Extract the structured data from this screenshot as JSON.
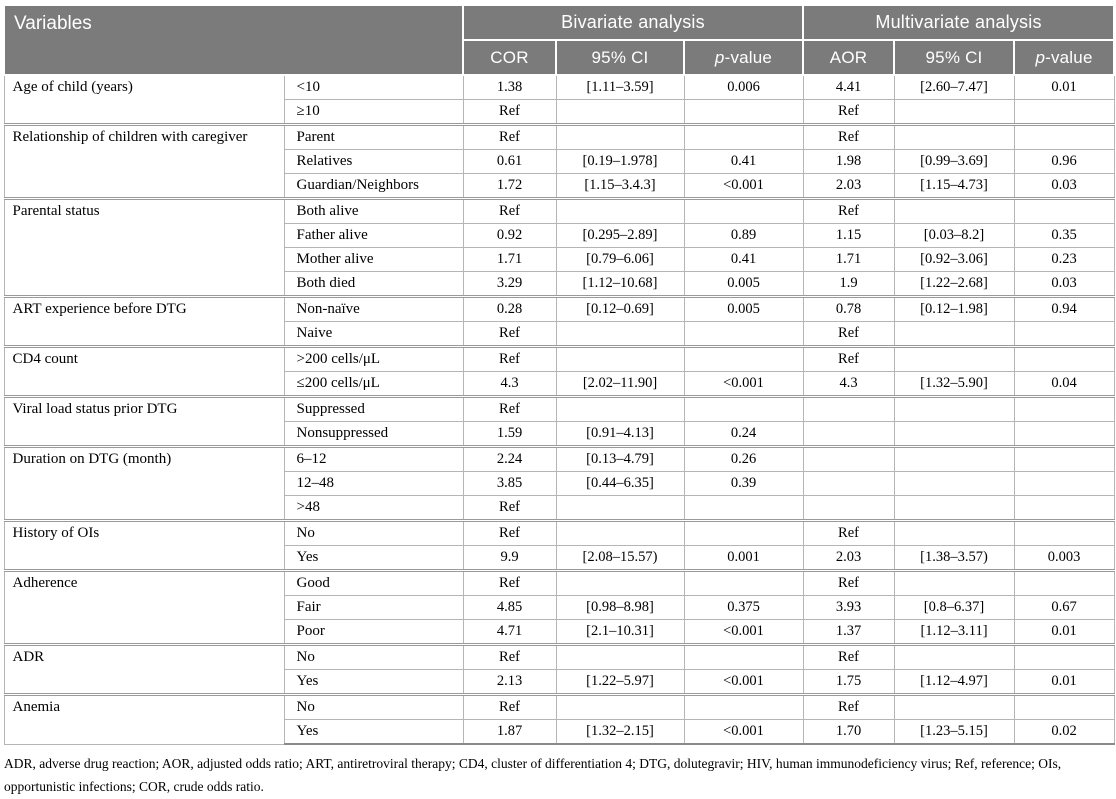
{
  "table": {
    "header": {
      "variables": "Variables",
      "bivariate": "Bivariate analysis",
      "multivariate": "Multivariate analysis",
      "sub_columns": [
        "COR",
        "95% CI",
        "p-value",
        "AOR",
        "95% CI",
        "p-value"
      ]
    },
    "groups": [
      {
        "variable": "Age of child (years)",
        "rows": [
          {
            "category": "<10",
            "cells": [
              "1.38",
              "[1.11–3.59]",
              "0.006",
              "4.41",
              "[2.60–7.47]",
              "0.01"
            ]
          },
          {
            "category": "≥10",
            "cells": [
              "Ref",
              "",
              "",
              "Ref",
              "",
              ""
            ]
          }
        ]
      },
      {
        "variable": "Relationship of children with caregiver",
        "rows": [
          {
            "category": "Parent",
            "cells": [
              "Ref",
              "",
              "",
              "Ref",
              "",
              ""
            ]
          },
          {
            "category": "Relatives",
            "cells": [
              "0.61",
              "[0.19–1.978]",
              "0.41",
              "1.98",
              "[0.99–3.69]",
              "0.96"
            ]
          },
          {
            "category": "Guardian/Neighbors",
            "cells": [
              "1.72",
              "[1.15–3.4.3]",
              "<0.001",
              "2.03",
              "[1.15–4.73]",
              "0.03"
            ]
          }
        ]
      },
      {
        "variable": "Parental status",
        "rows": [
          {
            "category": "Both alive",
            "cells": [
              "Ref",
              "",
              "",
              "Ref",
              "",
              ""
            ]
          },
          {
            "category": "Father alive",
            "cells": [
              "0.92",
              "[0.295–2.89]",
              "0.89",
              "1.15",
              "[0.03–8.2]",
              "0.35"
            ]
          },
          {
            "category": "Mother alive",
            "cells": [
              "1.71",
              "[0.79–6.06]",
              "0.41",
              "1.71",
              "[0.92–3.06]",
              "0.23"
            ]
          },
          {
            "category": "Both died",
            "cells": [
              "3.29",
              "[1.12–10.68]",
              "0.005",
              "1.9",
              "[1.22–2.68]",
              "0.03"
            ]
          }
        ]
      },
      {
        "variable": "ART experience before DTG",
        "rows": [
          {
            "category": "Non-naïve",
            "cells": [
              "0.28",
              "[0.12–0.69]",
              "0.005",
              "0.78",
              "[0.12–1.98]",
              "0.94"
            ]
          },
          {
            "category": "Naive",
            "cells": [
              "Ref",
              "",
              "",
              "Ref",
              "",
              ""
            ]
          }
        ]
      },
      {
        "variable": "CD4 count",
        "rows": [
          {
            "category": ">200 cells/μL",
            "cells": [
              "Ref",
              "",
              "",
              "Ref",
              "",
              ""
            ]
          },
          {
            "category": "≤200 cells/μL",
            "cells": [
              "4.3",
              "[2.02–11.90]",
              "<0.001",
              "4.3",
              "[1.32–5.90]",
              "0.04"
            ]
          }
        ]
      },
      {
        "variable": "Viral load status prior DTG",
        "rows": [
          {
            "category": "Suppressed",
            "cells": [
              "Ref",
              "",
              "",
              "",
              "",
              ""
            ]
          },
          {
            "category": "Nonsuppressed",
            "cells": [
              "1.59",
              "[0.91–4.13]",
              "0.24",
              "",
              "",
              ""
            ]
          }
        ]
      },
      {
        "variable": "Duration on DTG (month)",
        "rows": [
          {
            "category": "6–12",
            "cells": [
              "2.24",
              "[0.13–4.79]",
              "0.26",
              "",
              "",
              ""
            ]
          },
          {
            "category": "12–48",
            "cells": [
              "3.85",
              "[0.44–6.35]",
              "0.39",
              "",
              "",
              ""
            ]
          },
          {
            "category": ">48",
            "cells": [
              "Ref",
              "",
              "",
              "",
              "",
              ""
            ]
          }
        ]
      },
      {
        "variable": "History of OIs",
        "rows": [
          {
            "category": "No",
            "cells": [
              "Ref",
              "",
              "",
              "Ref",
              "",
              ""
            ]
          },
          {
            "category": "Yes",
            "cells": [
              "9.9",
              "[2.08–15.57)",
              "0.001",
              "2.03",
              "[1.38–3.57)",
              "0.003"
            ]
          }
        ]
      },
      {
        "variable": "Adherence",
        "rows": [
          {
            "category": "Good",
            "cells": [
              "Ref",
              "",
              "",
              "Ref",
              "",
              ""
            ]
          },
          {
            "category": "Fair",
            "cells": [
              "4.85",
              "[0.98–8.98]",
              "0.375",
              "3.93",
              "[0.8–6.37]",
              "0.67"
            ]
          },
          {
            "category": "Poor",
            "cells": [
              "4.71",
              "[2.1–10.31]",
              "<0.001",
              "1.37",
              "[1.12–3.11]",
              "0.01"
            ]
          }
        ]
      },
      {
        "variable": "ADR",
        "rows": [
          {
            "category": "No",
            "cells": [
              "Ref",
              "",
              "",
              "Ref",
              "",
              ""
            ]
          },
          {
            "category": "Yes",
            "cells": [
              "2.13",
              "[1.22–5.97]",
              "<0.001",
              "1.75",
              "[1.12–4.97]",
              "0.01"
            ]
          }
        ]
      },
      {
        "variable": "Anemia",
        "rows": [
          {
            "category": "No",
            "cells": [
              "Ref",
              "",
              "",
              "Ref",
              "",
              ""
            ]
          },
          {
            "category": "Yes",
            "cells": [
              "1.87",
              "[1.32–2.15]",
              "<0.001",
              "1.70",
              "[1.23–5.15]",
              "0.02"
            ]
          }
        ]
      }
    ]
  },
  "footnote": "ADR, adverse drug reaction; AOR, adjusted odds ratio; ART, antiretroviral therapy; CD4, cluster of differentiation 4; DTG, dolutegravir; HIV, human immunodeficiency virus; Ref, reference; OIs, opportunistic infections; COR, crude odds ratio.",
  "colors": {
    "header_bg": "#7b7b7b",
    "header_text": "#ffffff",
    "row_border": "#b5b5b5",
    "group_border": "#9a9a9a"
  }
}
